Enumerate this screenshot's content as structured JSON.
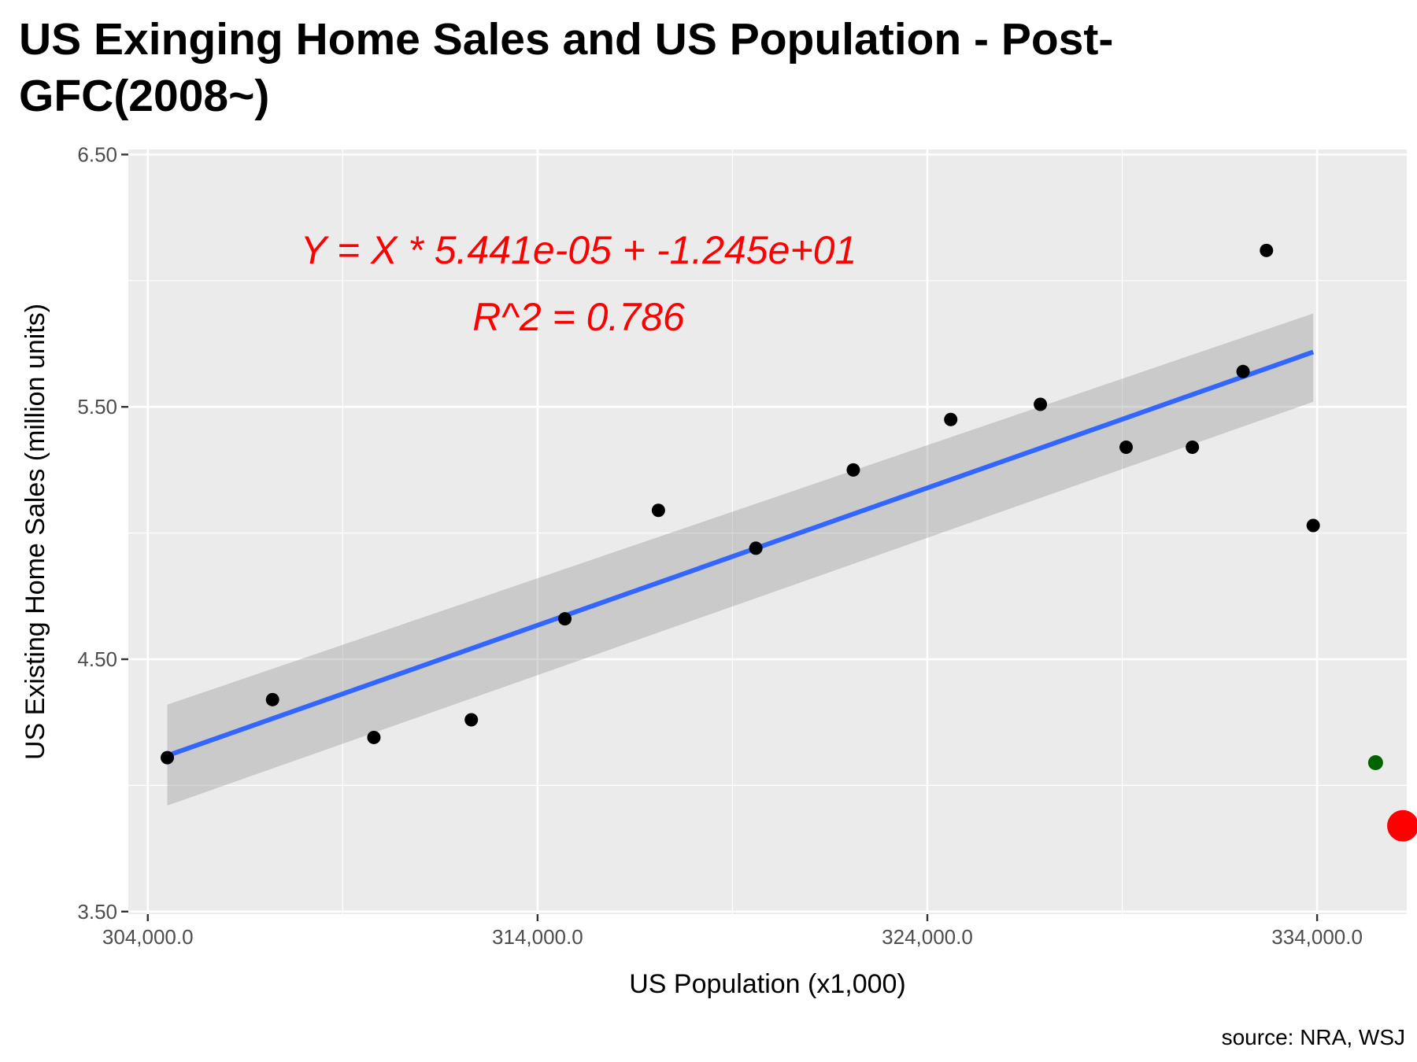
{
  "chart_data": {
    "type": "scatter",
    "title": "US Exinging Home Sales and US Population - Post-GFC(2008~)",
    "xlabel": "US Population (x1,000)",
    "ylabel": "US Existing Home Sales (million units)",
    "caption": "source: NRA, WSJ",
    "xlim": [
      303500,
      336300
    ],
    "ylim": [
      3.49,
      6.52
    ],
    "x_ticks": [
      304000,
      314000,
      324000,
      334000
    ],
    "x_tick_labels": [
      "304,000.0",
      "314,000.0",
      "324,000.0",
      "334,000.0"
    ],
    "y_ticks": [
      3.5,
      4.5,
      5.5,
      6.5
    ],
    "y_tick_labels": [
      "3.50",
      "4.50",
      "5.50",
      "6.50"
    ],
    "grid": true,
    "points": [
      {
        "x": 304500,
        "y": 4.11
      },
      {
        "x": 307200,
        "y": 4.34
      },
      {
        "x": 309800,
        "y": 4.19
      },
      {
        "x": 312300,
        "y": 4.26
      },
      {
        "x": 314700,
        "y": 4.66
      },
      {
        "x": 317100,
        "y": 5.09
      },
      {
        "x": 319600,
        "y": 4.94
      },
      {
        "x": 322100,
        "y": 5.25
      },
      {
        "x": 324600,
        "y": 5.45
      },
      {
        "x": 326900,
        "y": 5.51
      },
      {
        "x": 329100,
        "y": 5.34
      },
      {
        "x": 330800,
        "y": 5.34
      },
      {
        "x": 332100,
        "y": 5.64
      },
      {
        "x": 332700,
        "y": 6.12
      },
      {
        "x": 333900,
        "y": 5.03
      }
    ],
    "highlight_points": [
      {
        "x": 335500,
        "y": 4.09,
        "color": "#006400",
        "size": "small"
      },
      {
        "x": 336200,
        "y": 3.84,
        "color": "#ff0000",
        "size": "large"
      }
    ],
    "fit_line": {
      "slope": 5.441e-05,
      "intercept": -12.45,
      "x_range": [
        304500,
        333900
      ],
      "color": "#3366ff"
    },
    "confidence_band": {
      "lower": [
        3.92,
        5.52
      ],
      "upper": [
        4.32,
        5.87
      ]
    },
    "annotation": {
      "equation": "Y = X * 5.441e-05 + -1.245e+01",
      "r2": "R^2 = 0.786",
      "color": "#ff0000"
    }
  }
}
